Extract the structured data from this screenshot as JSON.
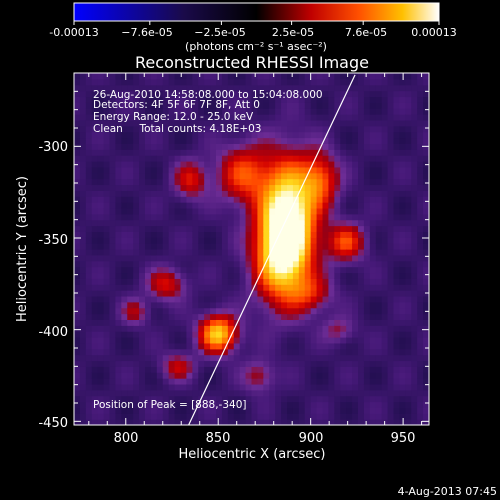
{
  "colorbar": {
    "tick_labels": [
      "-0.00013",
      "−7.6e-05",
      "−2.5e-05",
      "2.5e-05",
      "7.6e-05",
      "0.00013"
    ],
    "tick_values": [
      -0.00013,
      -7.6e-05,
      -2.5e-05,
      2.5e-05,
      7.6e-05,
      0.00013
    ],
    "range": [
      -0.00013,
      0.00013
    ],
    "unit_label": "(photons cm⁻² s⁻¹ asec⁻²)"
  },
  "chart_data": {
    "type": "heatmap",
    "title": "Reconstructed RHESSI Image",
    "xlabel": "Heliocentric X (arcsec)",
    "ylabel": "Heliocentric Y (arcsec)",
    "xlim": [
      772,
      964
    ],
    "ylim": [
      -452,
      -260
    ],
    "xticks": [
      800,
      850,
      900,
      950
    ],
    "yticks": [
      -300,
      -350,
      -400,
      -450
    ],
    "limb_line": [
      [
        834,
        -452
      ],
      [
        924,
        -261
      ]
    ],
    "sources": [
      {
        "x": 888,
        "y": -340,
        "amp": 1.0,
        "sx": 10,
        "sy": 22
      },
      {
        "x": 883,
        "y": -360,
        "amp": 0.55,
        "sx": 10,
        "sy": 18
      },
      {
        "x": 850,
        "y": -402,
        "amp": 0.75,
        "sx": 7,
        "sy": 7
      },
      {
        "x": 864,
        "y": -315,
        "amp": 0.45,
        "sx": 10,
        "sy": 11
      },
      {
        "x": 905,
        "y": -318,
        "amp": 0.45,
        "sx": 7,
        "sy": 10
      },
      {
        "x": 919,
        "y": -352,
        "amp": 0.45,
        "sx": 7,
        "sy": 7
      },
      {
        "x": 835,
        "y": -318,
        "amp": 0.35,
        "sx": 6,
        "sy": 7
      },
      {
        "x": 822,
        "y": -375,
        "amp": 0.35,
        "sx": 7,
        "sy": 6
      },
      {
        "x": 828,
        "y": -420,
        "amp": 0.3,
        "sx": 6,
        "sy": 5
      },
      {
        "x": 805,
        "y": -390,
        "amp": 0.25,
        "sx": 5,
        "sy": 5
      },
      {
        "x": 872,
        "y": -425,
        "amp": 0.25,
        "sx": 6,
        "sy": 6
      },
      {
        "x": 915,
        "y": -400,
        "amp": 0.2,
        "sx": 6,
        "sy": 5
      },
      {
        "x": 900,
        "y": -380,
        "amp": 0.3,
        "sx": 8,
        "sy": 7
      }
    ],
    "annotations": [
      "26-Aug-2010 14:58:08.000 to 15:04:08.000",
      "Detectors: 4F 5F 6F 7F 8F, Att 0",
      "Energy Range: 12.0 - 25.0 keV",
      "Clean     Total counts: 4.18E+03"
    ],
    "peak_label": "Position of Peak = [888,-340]"
  },
  "footer_date": "4-Aug-2013 07:45"
}
